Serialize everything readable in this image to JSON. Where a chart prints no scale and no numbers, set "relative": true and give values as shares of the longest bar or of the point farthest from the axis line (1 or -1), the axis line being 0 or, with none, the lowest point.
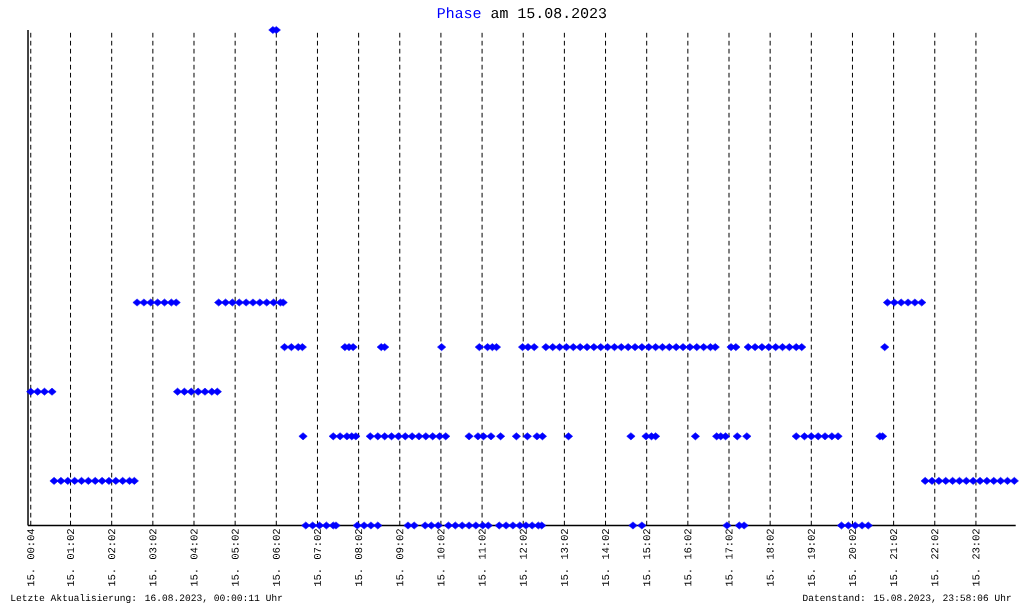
{
  "chart_data": {
    "type": "scatter",
    "title": "am 15.08.2023",
    "annotations": [
      "Letzte Aktualisierung: 16.08.2023, 00:00:11 Uhr",
      "Datenstand: 15.08.2023, 23:58:06 Uhr"
    ],
    "relative": true,
    "grid": "x",
    "marker": "diamond",
    "xlim": [
      "2023-08-15T00:00",
      "2023-08-16T00:00"
    ],
    "xticks": [
      {
        "value": "2023-08-15T00:04",
        "label": "15. 00:04"
      },
      {
        "value": "2023-08-15T01:02",
        "label": "15. 01:02"
      },
      {
        "value": "2023-08-15T02:02",
        "label": "15. 02:02"
      },
      {
        "value": "2023-08-15T03:02",
        "label": "15. 03:02"
      },
      {
        "value": "2023-08-15T04:02",
        "label": "15. 04:02"
      },
      {
        "value": "2023-08-15T05:02",
        "label": "15. 05:02"
      },
      {
        "value": "2023-08-15T06:02",
        "label": "15. 06:02"
      },
      {
        "value": "2023-08-15T07:02",
        "label": "15. 07:02"
      },
      {
        "value": "2023-08-15T08:02",
        "label": "15. 08:02"
      },
      {
        "value": "2023-08-15T09:02",
        "label": "15. 09:02"
      },
      {
        "value": "2023-08-15T10:02",
        "label": "15. 10:02"
      },
      {
        "value": "2023-08-15T11:02",
        "label": "15. 11:02"
      },
      {
        "value": "2023-08-15T12:02",
        "label": "15. 12:02"
      },
      {
        "value": "2023-08-15T13:02",
        "label": "15. 13:02"
      },
      {
        "value": "2023-08-15T14:02",
        "label": "15. 14:02"
      },
      {
        "value": "2023-08-15T15:02",
        "label": "15. 15:02"
      },
      {
        "value": "2023-08-15T16:02",
        "label": "15. 16:02"
      },
      {
        "value": "2023-08-15T17:02",
        "label": "15. 17:02"
      },
      {
        "value": "2023-08-15T18:02",
        "label": "15. 18:02"
      },
      {
        "value": "2023-08-15T19:02",
        "label": "15. 19:02"
      },
      {
        "value": "2023-08-15T20:02",
        "label": "15. 20:02"
      },
      {
        "value": "2023-08-15T21:02",
        "label": "15. 21:02"
      },
      {
        "value": "2023-08-15T22:02",
        "label": "15. 22:02"
      },
      {
        "value": "2023-08-15T23:02",
        "label": "15. 23:02"
      }
    ],
    "x": [
      "2023-08-15T00:04",
      "2023-08-15T00:14",
      "2023-08-15T00:24",
      "2023-08-15T00:35",
      "2023-08-15T00:38",
      "2023-08-15T00:48",
      "2023-08-15T00:58",
      "2023-08-15T01:08",
      "2023-08-15T01:18",
      "2023-08-15T01:28",
      "2023-08-15T01:38",
      "2023-08-15T01:48",
      "2023-08-15T01:58",
      "2023-08-15T02:08",
      "2023-08-15T02:18",
      "2023-08-15T02:28",
      "2023-08-15T02:35",
      "2023-08-15T02:39",
      "2023-08-15T02:49",
      "2023-08-15T02:59",
      "2023-08-15T03:09",
      "2023-08-15T03:19",
      "2023-08-15T03:29",
      "2023-08-15T03:36",
      "2023-08-15T03:38",
      "2023-08-15T03:48",
      "2023-08-15T03:58",
      "2023-08-15T04:08",
      "2023-08-15T04:18",
      "2023-08-15T04:28",
      "2023-08-15T04:36",
      "2023-08-15T04:38",
      "2023-08-15T04:48",
      "2023-08-15T04:58",
      "2023-08-15T05:08",
      "2023-08-15T05:18",
      "2023-08-15T05:28",
      "2023-08-15T05:38",
      "2023-08-15T05:48",
      "2023-08-15T05:58",
      "2023-08-15T06:08",
      "2023-08-15T06:12",
      "2023-08-15T05:57",
      "2023-08-15T06:02",
      "2023-08-15T06:14",
      "2023-08-15T06:24",
      "2023-08-15T06:34",
      "2023-08-15T06:40",
      "2023-08-15T06:41",
      "2023-08-15T06:45",
      "2023-08-15T06:55",
      "2023-08-15T07:05",
      "2023-08-15T07:15",
      "2023-08-15T07:25",
      "2023-08-15T07:29",
      "2023-08-15T07:25",
      "2023-08-15T07:35",
      "2023-08-15T07:45",
      "2023-08-15T07:52",
      "2023-08-15T07:58",
      "2023-08-15T07:42",
      "2023-08-15T07:48",
      "2023-08-15T07:54",
      "2023-08-15T08:00",
      "2023-08-15T08:10",
      "2023-08-15T08:20",
      "2023-08-15T08:30",
      "2023-08-15T08:19",
      "2023-08-15T08:35",
      "2023-08-15T08:40",
      "2023-08-15T08:30",
      "2023-08-15T08:40",
      "2023-08-15T08:50",
      "2023-08-15T09:00",
      "2023-08-15T09:10",
      "2023-08-15T09:20",
      "2023-08-15T09:30",
      "2023-08-15T09:40",
      "2023-08-15T09:50",
      "2023-08-15T10:00",
      "2023-08-15T10:09",
      "2023-08-15T09:14",
      "2023-08-15T09:23",
      "2023-08-15T09:39",
      "2023-08-15T09:48",
      "2023-08-15T09:58",
      "2023-08-15T10:03",
      "2023-08-15T10:13",
      "2023-08-15T10:23",
      "2023-08-15T10:33",
      "2023-08-15T10:43",
      "2023-08-15T10:53",
      "2023-08-15T11:03",
      "2023-08-15T11:11",
      "2023-08-15T10:43",
      "2023-08-15T10:56",
      "2023-08-15T11:04",
      "2023-08-15T11:15",
      "2023-08-15T11:29",
      "2023-08-15T11:52",
      "2023-08-15T10:58",
      "2023-08-15T11:10",
      "2023-08-15T11:17",
      "2023-08-15T11:23",
      "2023-08-15T11:27",
      "2023-08-15T11:37",
      "2023-08-15T11:47",
      "2023-08-15T11:57",
      "2023-08-15T12:06",
      "2023-08-15T12:01",
      "2023-08-15T12:09",
      "2023-08-15T12:18",
      "2023-08-15T12:08",
      "2023-08-15T12:15",
      "2023-08-15T12:24",
      "2023-08-15T12:29",
      "2023-08-15T12:22",
      "2023-08-15T12:30",
      "2023-08-15T12:35",
      "2023-08-15T12:45",
      "2023-08-15T12:55",
      "2023-08-15T13:05",
      "2023-08-15T13:15",
      "2023-08-15T13:25",
      "2023-08-15T13:35",
      "2023-08-15T13:45",
      "2023-08-15T13:55",
      "2023-08-15T14:05",
      "2023-08-15T14:15",
      "2023-08-15T14:25",
      "2023-08-15T14:35",
      "2023-08-15T14:45",
      "2023-08-15T14:55",
      "2023-08-15T15:05",
      "2023-08-15T15:15",
      "2023-08-15T15:25",
      "2023-08-15T15:35",
      "2023-08-15T15:45",
      "2023-08-15T15:55",
      "2023-08-15T16:05",
      "2023-08-15T16:15",
      "2023-08-15T16:25",
      "2023-08-15T16:35",
      "2023-08-15T16:42",
      "2023-08-15T13:08",
      "2023-08-15T14:39",
      "2023-08-15T15:01",
      "2023-08-15T15:09",
      "2023-08-15T15:15",
      "2023-08-15T14:42",
      "2023-08-15T14:55",
      "2023-08-15T16:13",
      "2023-08-15T16:44",
      "2023-08-15T16:50",
      "2023-08-15T16:57",
      "2023-08-15T16:59",
      "2023-08-15T17:05",
      "2023-08-15T17:12",
      "2023-08-15T17:14",
      "2023-08-15T17:17",
      "2023-08-15T17:24",
      "2023-08-15T17:28",
      "2023-08-15T17:30",
      "2023-08-15T17:40",
      "2023-08-15T17:50",
      "2023-08-15T18:00",
      "2023-08-15T18:10",
      "2023-08-15T18:20",
      "2023-08-15T18:30",
      "2023-08-15T18:40",
      "2023-08-15T18:48",
      "2023-08-15T18:40",
      "2023-08-15T18:52",
      "2023-08-15T19:02",
      "2023-08-15T19:12",
      "2023-08-15T19:22",
      "2023-08-15T19:32",
      "2023-08-15T19:41",
      "2023-08-15T19:46",
      "2023-08-15T19:56",
      "2023-08-15T20:06",
      "2023-08-15T20:16",
      "2023-08-15T20:25",
      "2023-08-15T20:42",
      "2023-08-15T20:46",
      "2023-08-15T20:49",
      "2023-08-15T20:53",
      "2023-08-15T21:03",
      "2023-08-15T21:13",
      "2023-08-15T21:23",
      "2023-08-15T21:33",
      "2023-08-15T21:43",
      "2023-08-15T21:48",
      "2023-08-15T21:58",
      "2023-08-15T22:08",
      "2023-08-15T22:18",
      "2023-08-15T22:28",
      "2023-08-15T22:38",
      "2023-08-15T22:48",
      "2023-08-15T22:58",
      "2023-08-15T23:08",
      "2023-08-15T23:18",
      "2023-08-15T23:28",
      "2023-08-15T23:38",
      "2023-08-15T23:48",
      "2023-08-15T23:58"
    ],
    "series": [
      {
        "name": "Phase",
        "color": "#0000ff",
        "values": [
          0.27,
          0.27,
          0.27,
          0.27,
          0.09,
          0.09,
          0.09,
          0.09,
          0.09,
          0.09,
          0.09,
          0.09,
          0.09,
          0.09,
          0.09,
          0.09,
          0.09,
          0.45,
          0.45,
          0.45,
          0.45,
          0.45,
          0.45,
          0.45,
          0.27,
          0.27,
          0.27,
          0.27,
          0.27,
          0.27,
          0.27,
          0.45,
          0.45,
          0.45,
          0.45,
          0.45,
          0.45,
          0.45,
          0.45,
          0.45,
          0.45,
          0.45,
          1,
          1,
          0.36,
          0.36,
          0.36,
          0.36,
          0.18,
          0,
          0,
          0,
          0,
          0,
          0,
          0.18,
          0.18,
          0.18,
          0.18,
          0.18,
          0.36,
          0.36,
          0.36,
          0,
          0,
          0,
          0,
          0.18,
          0.36,
          0.36,
          0.18,
          0.18,
          0.18,
          0.18,
          0.18,
          0.18,
          0.18,
          0.18,
          0.18,
          0.18,
          0.18,
          0,
          0,
          0,
          0,
          0,
          0.36,
          0,
          0,
          0,
          0,
          0,
          0,
          0,
          0.18,
          0.18,
          0.18,
          0.18,
          0.18,
          0.18,
          0.36,
          0.36,
          0.36,
          0.36,
          0,
          0,
          0,
          0,
          0,
          0.36,
          0.36,
          0.36,
          0.18,
          0,
          0,
          0,
          0.18,
          0.18,
          0.36,
          0.36,
          0.36,
          0.36,
          0.36,
          0.36,
          0.36,
          0.36,
          0.36,
          0.36,
          0.36,
          0.36,
          0.36,
          0.36,
          0.36,
          0.36,
          0.36,
          0.36,
          0.36,
          0.36,
          0.36,
          0.36,
          0.36,
          0.36,
          0.36,
          0.36,
          0.18,
          0.18,
          0.18,
          0.18,
          0.18,
          0,
          0,
          0.18,
          0.18,
          0.18,
          0.18,
          0,
          0.36,
          0.36,
          0.18,
          0,
          0,
          0.18,
          0.36,
          0.36,
          0.36,
          0.36,
          0.36,
          0.36,
          0.36,
          0.36,
          0.36,
          0.18,
          0.18,
          0.18,
          0.18,
          0.18,
          0.18,
          0.18,
          0,
          0,
          0,
          0,
          0,
          0.18,
          0.18,
          0.36,
          0.45,
          0.45,
          0.45,
          0.45,
          0.45,
          0.45,
          0.09,
          0.09,
          0.09,
          0.09,
          0.09,
          0.09,
          0.09,
          0.09,
          0.09,
          0.09,
          0.09,
          0.09,
          0.09,
          0.09
        ]
      }
    ]
  }
}
